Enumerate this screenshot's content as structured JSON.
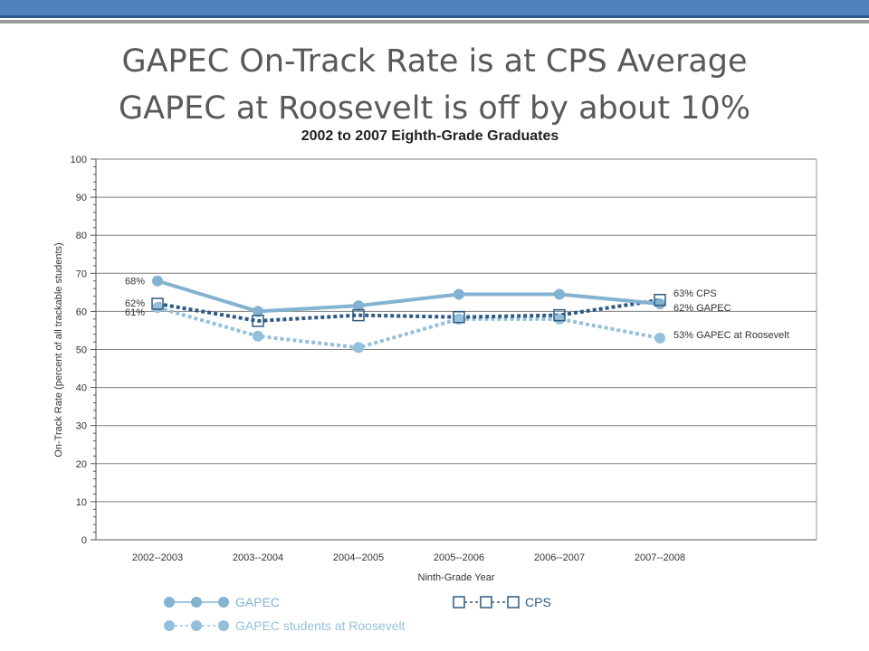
{
  "slide": {
    "title_line1": "GAPEC On-Track Rate is at CPS Average",
    "title_line2": "GAPEC at Roosevelt is off by about 10%"
  },
  "colors": {
    "gapec": "#84b2d1",
    "roosevelt": "#95c0dc",
    "cps": "#2d5a84",
    "grid": "#7f7f7f",
    "axis_text": "#333333"
  },
  "chart_data": {
    "type": "line",
    "title": "2002 to 2007 Eighth-Grade Graduates",
    "xlabel": "Ninth-Grade Year",
    "ylabel": "On-Track Rate (percent of all trackable students)",
    "ylim": [
      0,
      100
    ],
    "yticks": [
      0,
      10,
      20,
      30,
      40,
      50,
      60,
      70,
      80,
      90,
      100
    ],
    "categories": [
      "2002--2003",
      "2003--2004",
      "2004--2005",
      "2005--2006",
      "2006--2007",
      "2007--2008"
    ],
    "grid": true,
    "series": [
      {
        "name": "GAPEC",
        "values": [
          68,
          60,
          61.5,
          64.5,
          64.5,
          62
        ],
        "marker": "circle",
        "line": "solid",
        "start_label": "68%",
        "end_label": "62% GAPEC"
      },
      {
        "name": "CPS",
        "values": [
          62,
          57.5,
          59,
          58.5,
          59,
          63
        ],
        "marker": "square",
        "line": "dotted",
        "start_label": "62%",
        "end_label": "63% CPS"
      },
      {
        "name": "GAPEC students at Roosevelt",
        "values": [
          61,
          53.5,
          50.5,
          58,
          58,
          53
        ],
        "marker": "circle",
        "line": "dotted",
        "start_label": "61%",
        "end_label": "53% GAPEC at Roosevelt"
      }
    ],
    "legend": {
      "placement": "bottom",
      "items": [
        "GAPEC",
        "CPS",
        "GAPEC students at Roosevelt"
      ]
    }
  }
}
